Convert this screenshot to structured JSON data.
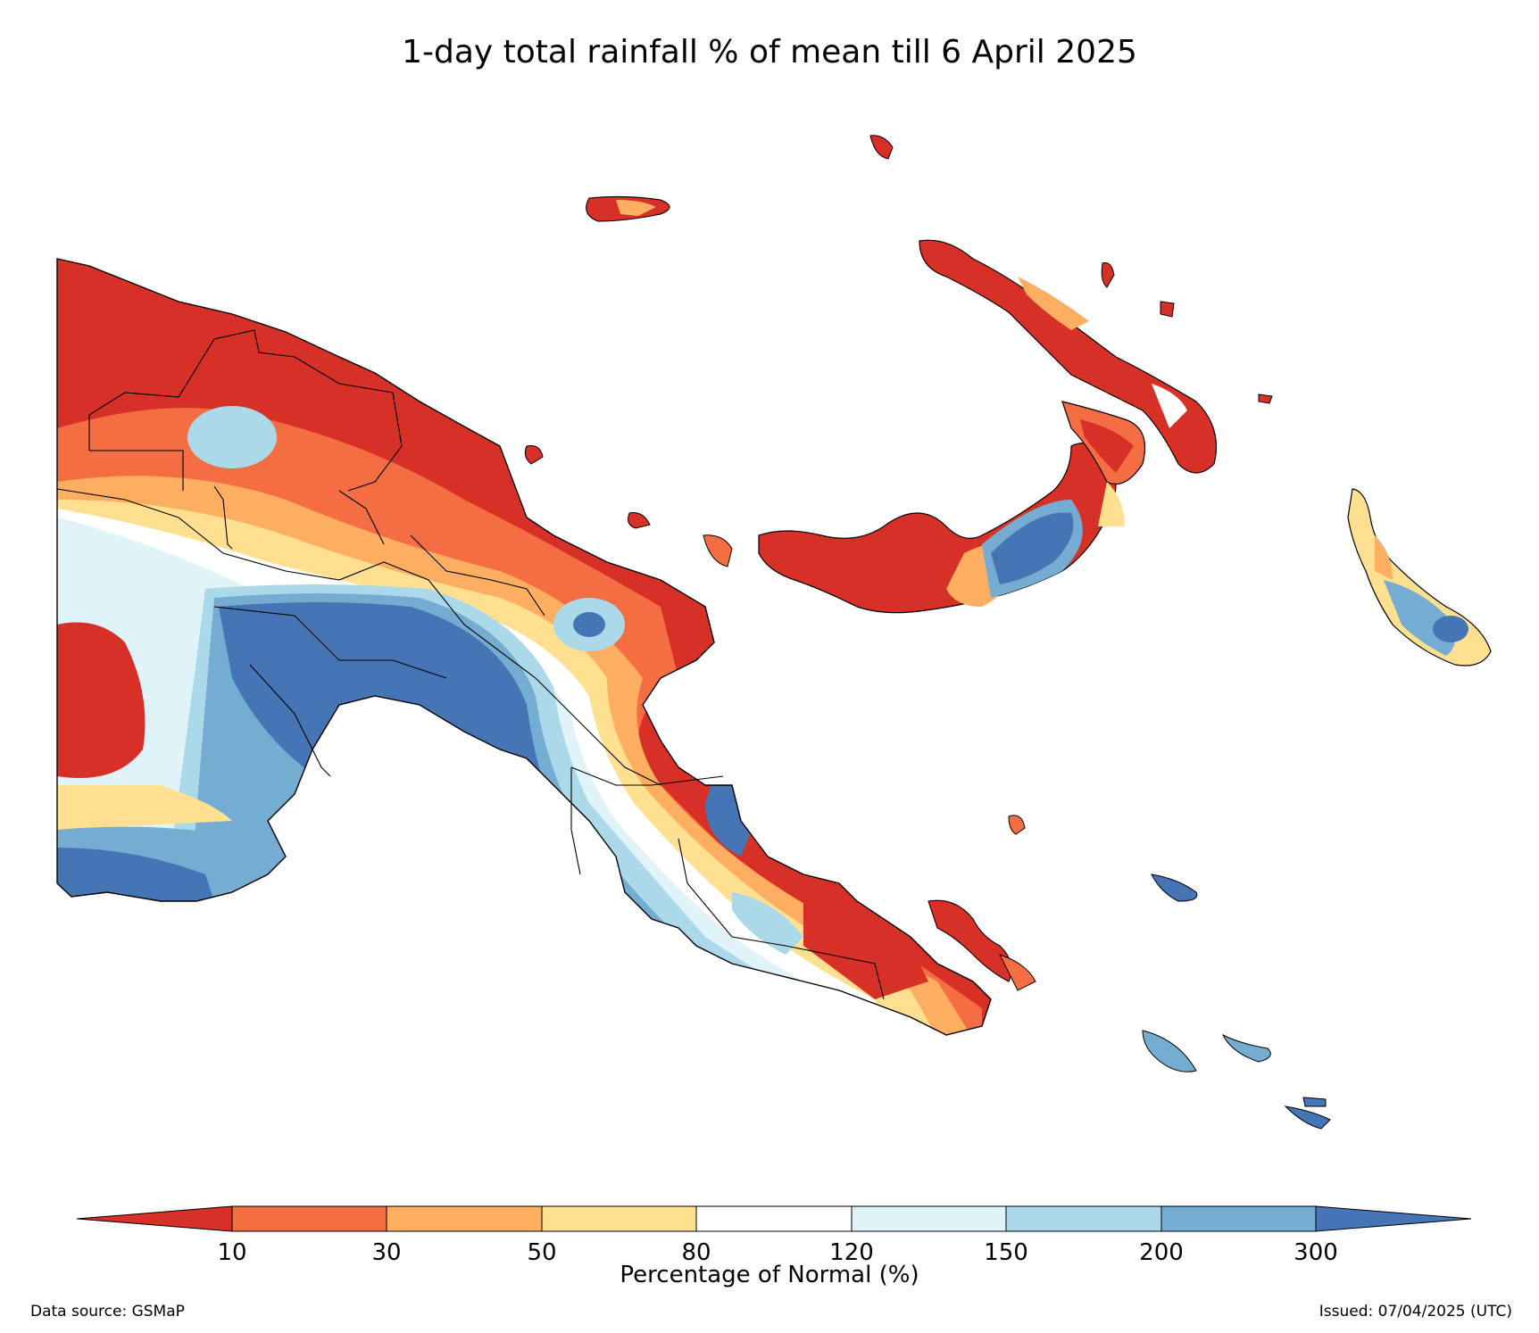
{
  "title": "1-day total rainfall % of mean till 6 April 2025",
  "colorbar": {
    "label": "Percentage of Normal (%)",
    "ticks": [
      "10",
      "30",
      "50",
      "80",
      "120",
      "150",
      "200",
      "300"
    ],
    "colors": [
      "#d73027",
      "#f46d43",
      "#fdae61",
      "#fee090",
      "#ffffff",
      "#e0f3f8",
      "#abd9e9",
      "#74add1",
      "#4575b4"
    ]
  },
  "footer": {
    "source": "Data source: GSMaP",
    "issued": "Issued: 07/04/2025 (UTC)"
  }
}
